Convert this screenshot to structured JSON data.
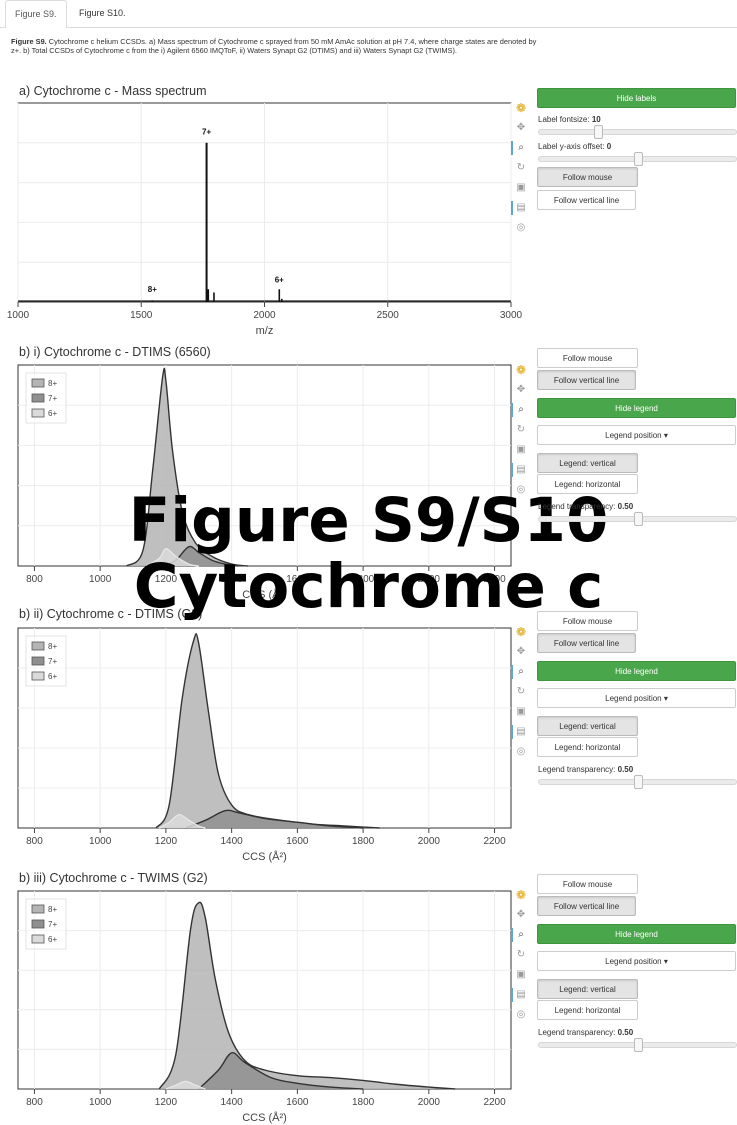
{
  "tabs": [
    "Figure S9.",
    "Figure S10."
  ],
  "caption": {
    "bold": "Figure S9.",
    "text": " Cytochrome c helium CCSDs. a) Mass spectrum of Cytochrome c sprayed from 50 mM AmAc solution at pH 7.4, where charge states are denoted by z+. b) Total CCSDs of Cytochrome c from the i) Agilent 6560 IMQToF, ii) Waters Synapt G2 (DTIMS) and iii) Waters Synapt G2 (TWIMS)."
  },
  "overlay": {
    "line1": "Figure S9/S10",
    "line2": "Cytochrome c"
  },
  "icons": [
    "logo-icon",
    "pan-icon",
    "zoom-icon",
    "reset-icon",
    "save-icon",
    "hover-icon",
    "crosshair-icon"
  ],
  "mass_panel": {
    "title": "a) Cytochrome c - Mass spectrum",
    "controls": {
      "hide_labels": "Hide labels",
      "fontsize_label": "Label fontsize:",
      "fontsize_value": "10",
      "fontsize_fraction": 0.3,
      "offset_label": "Label y-axis offset:",
      "offset_value": "0",
      "offset_fraction": 0.5,
      "follow_mouse": "Follow mouse",
      "follow_vertical": "Follow vertical line"
    }
  },
  "ccs_panels": [
    {
      "title": "b) i) Cytochrome c - DTIMS (6560)",
      "controls": {
        "follow_mouse": "Follow mouse",
        "follow_vertical": "Follow vertical line",
        "hide_legend": "Hide legend",
        "legend_position": "Legend position",
        "legend_vertical": "Legend: vertical",
        "legend_horizontal": "Legend: horizontal",
        "transparency_label": "Legend transparency:",
        "transparency_value": "0.50",
        "transparency_fraction": 0.5
      }
    },
    {
      "title": "b) ii) Cytochrome c - DTIMS (G2)",
      "controls": {
        "follow_mouse": "Follow mouse",
        "follow_vertical": "Follow vertical line",
        "hide_legend": "Hide legend",
        "legend_position": "Legend position",
        "legend_vertical": "Legend: vertical",
        "legend_horizontal": "Legend: horizontal",
        "transparency_label": "Legend transparency:",
        "transparency_value": "0.50",
        "transparency_fraction": 0.5
      }
    },
    {
      "title": "b) iii) Cytochrome c - TWIMS (G2)",
      "controls": {
        "follow_mouse": "Follow mouse",
        "follow_vertical": "Follow vertical line",
        "hide_legend": "Hide legend",
        "legend_position": "Legend position",
        "legend_vertical": "Legend: vertical",
        "legend_horizontal": "Legend: horizontal",
        "transparency_label": "Legend transparency:",
        "transparency_value": "0.50",
        "transparency_fraction": 0.5
      }
    }
  ],
  "colors": {
    "green": "#4aa64a",
    "c8": "#b4b4b4",
    "c7": "#8f8f8f",
    "c6": "#dadada",
    "line": "#333333"
  },
  "chart_data": [
    {
      "type": "line",
      "title": "a) Cytochrome c - Mass spectrum",
      "xlabel": "m/z",
      "ylabel": "",
      "xlim": [
        1000,
        3000
      ],
      "xticks": [
        1000,
        1500,
        2000,
        2500,
        3000
      ],
      "grid": true,
      "y_scale": "relative intensity (0-1)",
      "peaks": [
        {
          "x": 1545,
          "y": 0.01
        },
        {
          "x": 1765,
          "y": 1.0
        },
        {
          "x": 1772,
          "y": 0.08
        },
        {
          "x": 1795,
          "y": 0.06
        },
        {
          "x": 2060,
          "y": 0.08
        },
        {
          "x": 2070,
          "y": 0.02
        }
      ],
      "labels": [
        {
          "text": "8+",
          "x": 1545,
          "y": 0.05
        },
        {
          "text": "7+",
          "x": 1765,
          "y": 1.04
        },
        {
          "text": "6+",
          "x": 2060,
          "y": 0.11
        }
      ]
    },
    {
      "type": "area",
      "title": "b) i) Cytochrome c - DTIMS (6560)",
      "xlabel": "CCS (Å²)",
      "ylabel": "",
      "xlim": [
        750,
        2250
      ],
      "xticks": [
        800,
        1000,
        1200,
        1400,
        1600,
        1800,
        2000,
        2200
      ],
      "grid": true,
      "legend": "top-left",
      "series": [
        {
          "name": "8+",
          "points": [
            [
              1080,
              0
            ],
            [
              1130,
              0.08
            ],
            [
              1160,
              0.5
            ],
            [
              1190,
              0.98
            ],
            [
              1200,
              0.96
            ],
            [
              1220,
              0.6
            ],
            [
              1250,
              0.28
            ],
            [
              1290,
              0.12
            ],
            [
              1340,
              0.05
            ],
            [
              1400,
              0.01
            ],
            [
              1450,
              0
            ]
          ]
        },
        {
          "name": "7+",
          "points": [
            [
              1190,
              0
            ],
            [
              1230,
              0.03
            ],
            [
              1270,
              0.1
            ],
            [
              1300,
              0.07
            ],
            [
              1340,
              0.03
            ],
            [
              1380,
              0.01
            ],
            [
              1420,
              0
            ]
          ]
        },
        {
          "name": "6+",
          "points": [
            [
              1140,
              0
            ],
            [
              1180,
              0.04
            ],
            [
              1200,
              0.09
            ],
            [
              1230,
              0.05
            ],
            [
              1270,
              0.01
            ],
            [
              1300,
              0
            ]
          ]
        }
      ]
    },
    {
      "type": "area",
      "title": "b) ii) Cytochrome c - DTIMS (G2)",
      "xlabel": "CCS (Å²)",
      "ylabel": "",
      "xlim": [
        750,
        2250
      ],
      "xticks": [
        800,
        1000,
        1200,
        1400,
        1600,
        1800,
        2000,
        2200
      ],
      "grid": true,
      "legend": "top-left",
      "series": [
        {
          "name": "8+",
          "points": [
            [
              1170,
              0
            ],
            [
              1210,
              0.12
            ],
            [
              1250,
              0.68
            ],
            [
              1285,
              0.98
            ],
            [
              1300,
              0.96
            ],
            [
              1330,
              0.6
            ],
            [
              1360,
              0.28
            ],
            [
              1400,
              0.12
            ],
            [
              1450,
              0.07
            ],
            [
              1550,
              0.04
            ],
            [
              1650,
              0.02
            ],
            [
              1750,
              0.01
            ],
            [
              1850,
              0
            ]
          ]
        },
        {
          "name": "7+",
          "points": [
            [
              1260,
              0
            ],
            [
              1320,
              0.04
            ],
            [
              1380,
              0.09
            ],
            [
              1420,
              0.08
            ],
            [
              1500,
              0.05
            ],
            [
              1600,
              0.03
            ],
            [
              1700,
              0.01
            ],
            [
              1800,
              0
            ]
          ]
        },
        {
          "name": "6+",
          "points": [
            [
              1180,
              0
            ],
            [
              1210,
              0.03
            ],
            [
              1240,
              0.07
            ],
            [
              1270,
              0.04
            ],
            [
              1300,
              0.01
            ],
            [
              1320,
              0
            ]
          ]
        }
      ]
    },
    {
      "type": "area",
      "title": "b) iii) Cytochrome c - TWIMS (G2)",
      "xlabel": "CCS (Å²)",
      "ylabel": "",
      "xlim": [
        750,
        2250
      ],
      "xticks": [
        800,
        1000,
        1200,
        1400,
        1600,
        1800,
        2000,
        2200
      ],
      "grid": true,
      "legend": "top-left",
      "series": [
        {
          "name": "8+",
          "points": [
            [
              1180,
              0
            ],
            [
              1230,
              0.18
            ],
            [
              1275,
              0.84
            ],
            [
              1300,
              0.98
            ],
            [
              1320,
              0.9
            ],
            [
              1350,
              0.58
            ],
            [
              1390,
              0.3
            ],
            [
              1440,
              0.15
            ],
            [
              1500,
              0.1
            ],
            [
              1600,
              0.07
            ],
            [
              1700,
              0.06
            ],
            [
              1800,
              0.045
            ],
            [
              1900,
              0.025
            ],
            [
              2000,
              0.01
            ],
            [
              2080,
              0
            ]
          ]
        },
        {
          "name": "7+",
          "points": [
            [
              1300,
              0
            ],
            [
              1360,
              0.1
            ],
            [
              1400,
              0.19
            ],
            [
              1440,
              0.14
            ],
            [
              1520,
              0.06
            ],
            [
              1600,
              0.03
            ],
            [
              1700,
              0.01
            ],
            [
              1800,
              0
            ]
          ]
        },
        {
          "name": "6+",
          "points": [
            [
              1200,
              0
            ],
            [
              1230,
              0.02
            ],
            [
              1260,
              0.04
            ],
            [
              1290,
              0.02
            ],
            [
              1320,
              0
            ]
          ]
        }
      ]
    }
  ]
}
